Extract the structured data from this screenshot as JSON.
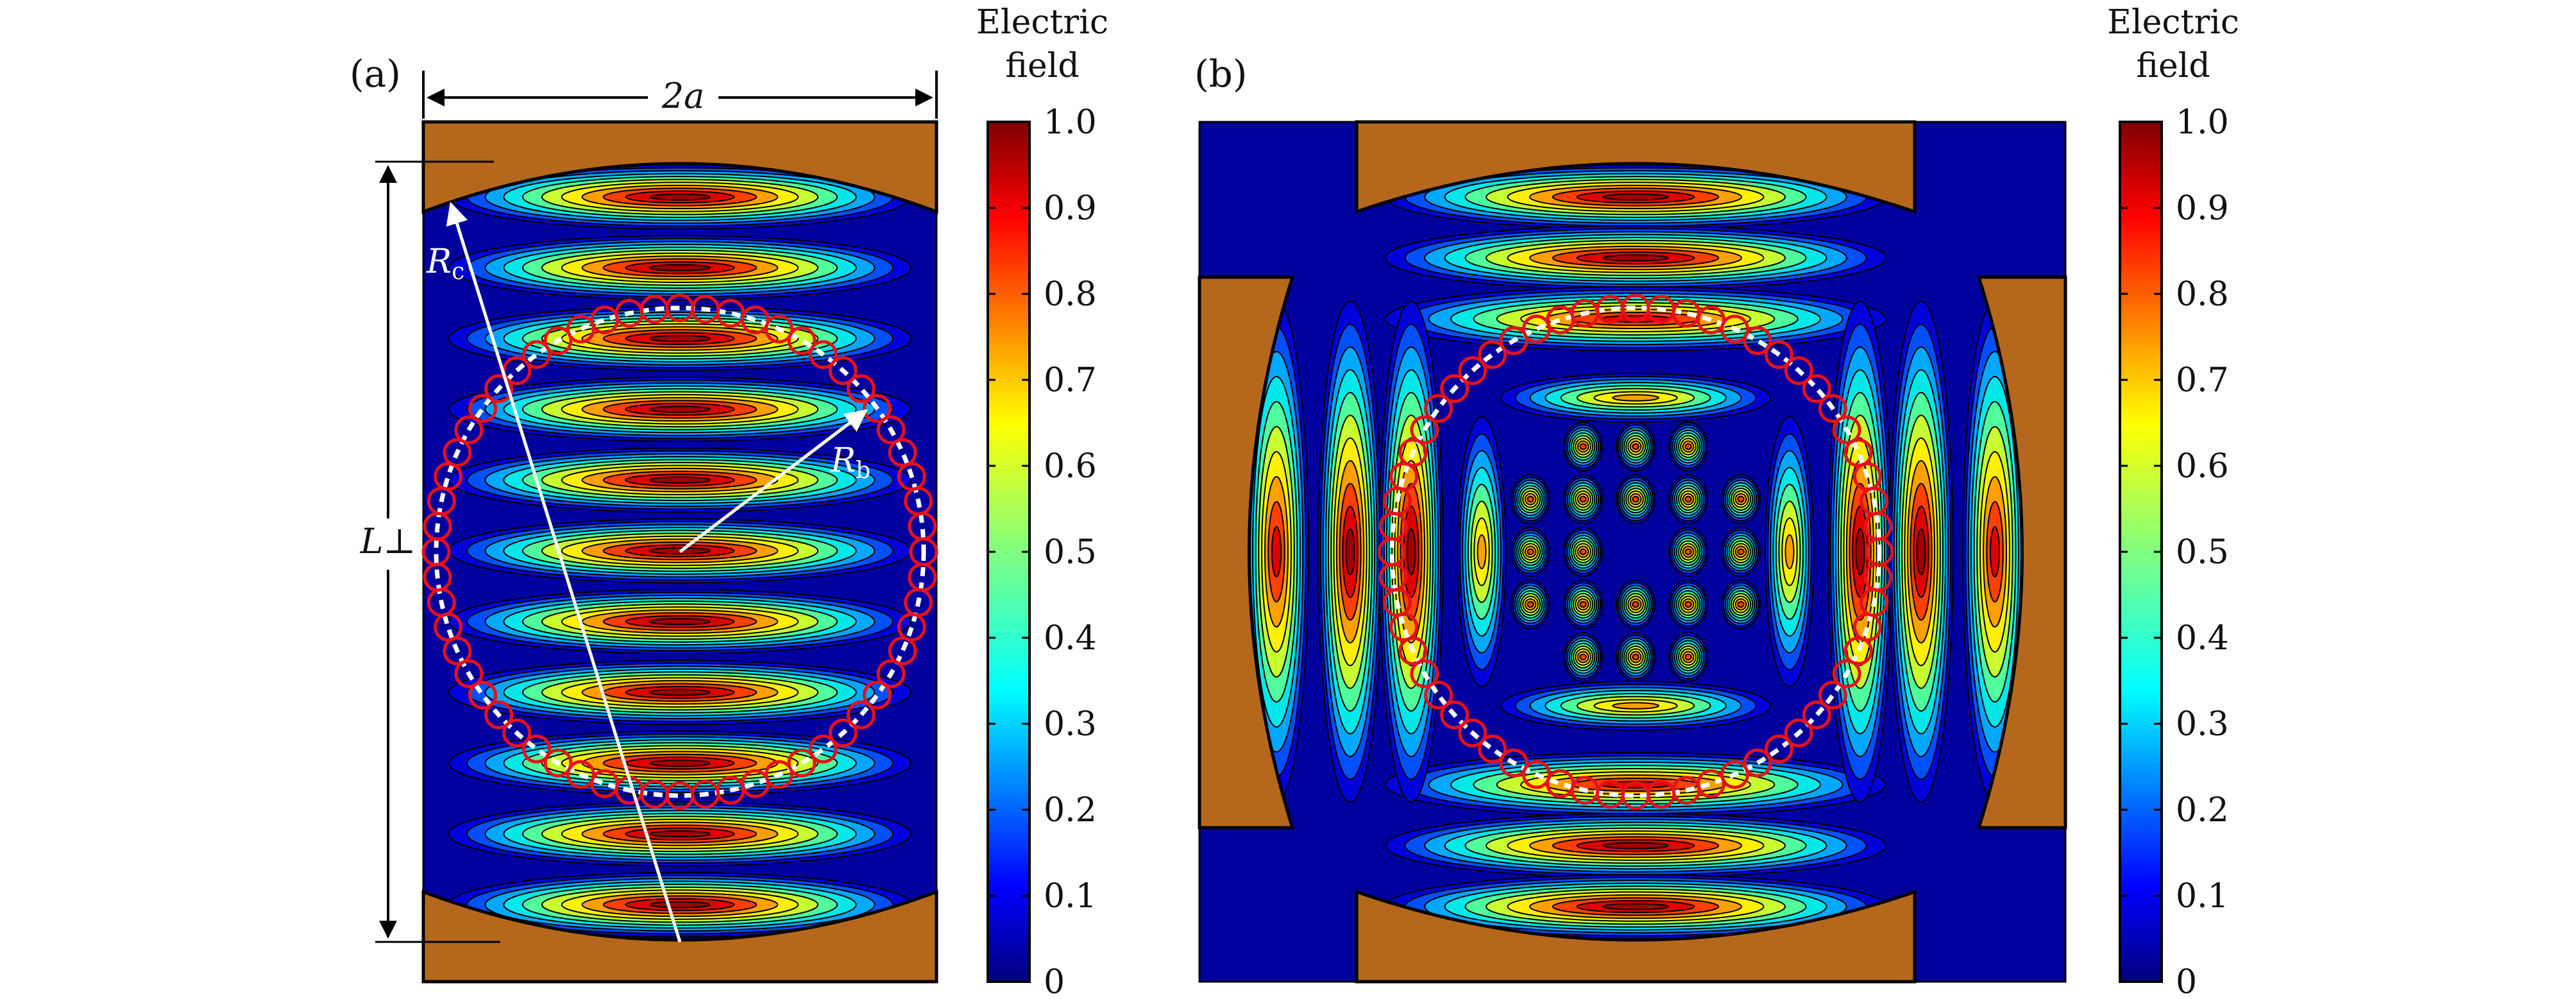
{
  "chart_data": [
    {
      "type": "heatmap",
      "panel_label": "(a)",
      "pattern": "standing-wave field in a rectangular cavity with curved mirror end plates, surrounding a ring of beam-tunnel circles",
      "field_lobes": 11,
      "annotations": {
        "width": "2a",
        "height": "L⊥",
        "mirror_radius": {
          "main": "R",
          "sub": "c"
        },
        "ring_radius": {
          "main": "R",
          "sub": "b"
        }
      },
      "colorbar": {
        "title": [
          "Electric",
          "field"
        ],
        "ticks": [
          "0",
          "0.1",
          "0.2",
          "0.3",
          "0.4",
          "0.5",
          "0.6",
          "0.7",
          "0.8",
          "0.9",
          "1.0"
        ],
        "range": [
          0,
          1.0
        ],
        "colormap": "jet"
      },
      "ring_circles": 60
    },
    {
      "type": "heatmap",
      "panel_label": "(b)",
      "pattern": "two crossed standing-wave modes in a square cavity with four curved mirror plates, inner checkerboard interference, ring of beam-tunnel circles",
      "colorbar": {
        "title": [
          "Electric",
          "field"
        ],
        "ticks": [
          "0",
          "0.1",
          "0.2",
          "0.3",
          "0.4",
          "0.5",
          "0.6",
          "0.7",
          "0.8",
          "0.9",
          "1.0"
        ],
        "range": [
          0,
          1.0
        ],
        "colormap": "jet"
      },
      "ring_circles": 60
    }
  ],
  "colors": {
    "background": "#00009f",
    "mirror": "#b5681c",
    "ring": "#e8101a",
    "contour": "#000000",
    "arrow": "#ffffff"
  }
}
